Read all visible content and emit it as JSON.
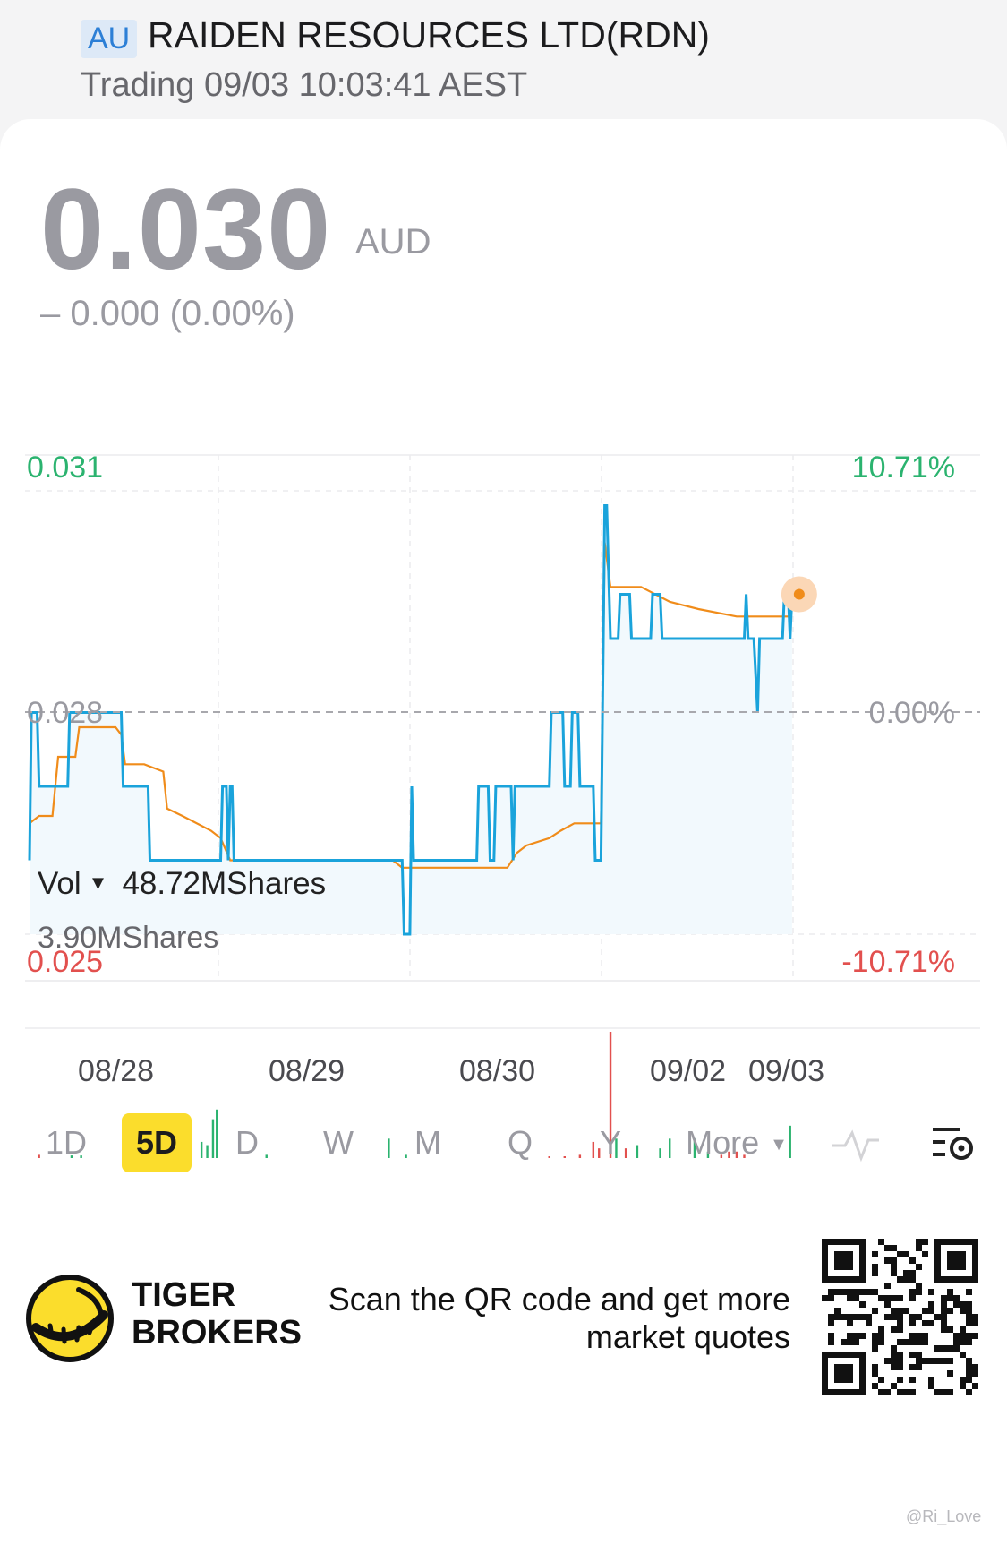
{
  "header": {
    "market_badge": "AU",
    "stock_name": "RAIDEN RESOURCES LTD(RDN)",
    "trading_status": "Trading 09/03 10:03:41 AEST"
  },
  "quote": {
    "price": "0.030",
    "currency": "AUD",
    "change": "– 0.000 (0.00%)"
  },
  "chart_labels": {
    "high_price": "0.031",
    "low_price": "0.025",
    "base_price": "0.028",
    "high_pct": "10.71%",
    "low_pct": "-10.71%",
    "base_pct": "0.00%"
  },
  "volume": {
    "label": "Vol",
    "total": "48.72MShares",
    "max": "3.90MShares"
  },
  "dates": [
    "08/28",
    "08/29",
    "08/30",
    "09/02",
    "09/03"
  ],
  "periods": {
    "p1d": "1D",
    "p5d": "5D",
    "pd": "D",
    "pw": "W",
    "pm": "M",
    "pq": "Q",
    "py": "Y",
    "more": "More",
    "active": "5D"
  },
  "footer": {
    "brand_line1": "TIGER",
    "brand_line2": "BROKERS",
    "promo_line1": "Scan the QR code and get more",
    "promo_line2": "market quotes",
    "watermark": "@Ri_Love"
  },
  "colors": {
    "price_line": "#1aa3db",
    "avg_line": "#f08c1a",
    "up": "#2bb36f",
    "down": "#e2504e",
    "active_period": "#fbdd2c"
  },
  "icons": [
    "intraday-line-icon",
    "chart-settings-icon",
    "tiger-logo-icon",
    "qr-code-icon",
    "dropdown-caret-icon"
  ],
  "chart_data": {
    "type": "line",
    "x_unit": "trading session (0 = open 08/28, 4 = 09/03)",
    "ylim": [
      0.025,
      0.031
    ],
    "base": 0.028,
    "series": [
      {
        "values": [
          [
            0.0,
            0.026
          ],
          [
            0.01,
            0.028
          ],
          [
            0.04,
            0.028
          ],
          [
            0.05,
            0.027
          ],
          [
            0.2,
            0.027
          ],
          [
            0.21,
            0.028
          ],
          [
            0.48,
            0.028
          ],
          [
            0.49,
            0.027
          ],
          [
            0.62,
            0.027
          ],
          [
            0.63,
            0.026
          ],
          [
            1.0,
            0.026
          ],
          [
            1.01,
            0.027
          ],
          [
            1.03,
            0.027
          ],
          [
            1.04,
            0.026
          ],
          [
            1.05,
            0.027
          ],
          [
            1.06,
            0.027
          ],
          [
            1.07,
            0.026
          ],
          [
            1.95,
            0.026
          ],
          [
            1.96,
            0.025
          ],
          [
            1.99,
            0.025
          ],
          [
            2.0,
            0.027
          ],
          [
            2.01,
            0.026
          ],
          [
            2.34,
            0.026
          ],
          [
            2.35,
            0.027
          ],
          [
            2.4,
            0.027
          ],
          [
            2.41,
            0.026
          ],
          [
            2.43,
            0.026
          ],
          [
            2.44,
            0.027
          ],
          [
            2.52,
            0.027
          ],
          [
            2.53,
            0.026
          ],
          [
            2.54,
            0.027
          ],
          [
            2.72,
            0.027
          ],
          [
            2.73,
            0.028
          ],
          [
            2.79,
            0.028
          ],
          [
            2.8,
            0.027
          ],
          [
            2.83,
            0.027
          ],
          [
            2.84,
            0.028
          ],
          [
            2.87,
            0.028
          ],
          [
            2.88,
            0.027
          ],
          [
            2.95,
            0.027
          ],
          [
            2.96,
            0.026
          ],
          [
            2.99,
            0.026
          ],
          [
            3.01,
            0.0308
          ],
          [
            3.02,
            0.0308
          ],
          [
            3.04,
            0.029
          ],
          [
            3.08,
            0.029
          ],
          [
            3.09,
            0.0296
          ],
          [
            3.14,
            0.0296
          ],
          [
            3.15,
            0.029
          ],
          [
            3.25,
            0.029
          ],
          [
            3.26,
            0.0296
          ],
          [
            3.3,
            0.0296
          ],
          [
            3.31,
            0.029
          ],
          [
            3.74,
            0.029
          ],
          [
            3.75,
            0.0296
          ],
          [
            3.76,
            0.029
          ],
          [
            3.79,
            0.029
          ],
          [
            3.81,
            0.028
          ],
          [
            3.82,
            0.029
          ],
          [
            3.94,
            0.029
          ],
          [
            3.95,
            0.0296
          ],
          [
            3.97,
            0.0296
          ],
          [
            3.98,
            0.029
          ],
          [
            3.99,
            0.0296
          ]
        ]
      },
      {
        "values": [
          [
            0.0,
            0.0265
          ],
          [
            0.05,
            0.0266
          ],
          [
            0.12,
            0.0266
          ],
          [
            0.15,
            0.0274
          ],
          [
            0.24,
            0.0274
          ],
          [
            0.26,
            0.0278
          ],
          [
            0.45,
            0.0278
          ],
          [
            0.48,
            0.0277
          ],
          [
            0.5,
            0.0273
          ],
          [
            0.6,
            0.0273
          ],
          [
            0.7,
            0.0272
          ],
          [
            0.72,
            0.0267
          ],
          [
            0.8,
            0.0266
          ],
          [
            0.95,
            0.0264
          ],
          [
            1.0,
            0.0263
          ],
          [
            1.05,
            0.026
          ],
          [
            1.9,
            0.026
          ],
          [
            1.95,
            0.0259
          ],
          [
            2.4,
            0.0259
          ],
          [
            2.5,
            0.0259
          ],
          [
            2.55,
            0.0261
          ],
          [
            2.6,
            0.0262
          ],
          [
            2.72,
            0.0263
          ],
          [
            2.78,
            0.0264
          ],
          [
            2.85,
            0.0265
          ],
          [
            2.99,
            0.0265
          ],
          [
            3.01,
            0.0303
          ],
          [
            3.04,
            0.0297
          ],
          [
            3.2,
            0.0297
          ],
          [
            3.35,
            0.0295
          ],
          [
            3.5,
            0.0294
          ],
          [
            3.7,
            0.0293
          ],
          [
            3.85,
            0.0293
          ],
          [
            3.99,
            0.0293
          ]
        ]
      }
    ],
    "volume_ylim": [
      0,
      3.9
    ],
    "volume_unit": "MShares",
    "volume_bars": [
      {
        "x": 0.05,
        "v": 0.1,
        "dir": "down"
      },
      {
        "x": 0.22,
        "v": 0.08,
        "dir": "up"
      },
      {
        "x": 0.27,
        "v": 0.08,
        "dir": "up"
      },
      {
        "x": 0.7,
        "v": 0.5,
        "dir": "up"
      },
      {
        "x": 0.75,
        "v": 0.3,
        "dir": "up"
      },
      {
        "x": 0.8,
        "v": 0.4,
        "dir": "up"
      },
      {
        "x": 0.84,
        "v": 0.3,
        "dir": "up"
      },
      {
        "x": 0.9,
        "v": 0.5,
        "dir": "up"
      },
      {
        "x": 0.93,
        "v": 0.4,
        "dir": "up"
      },
      {
        "x": 0.96,
        "v": 1.2,
        "dir": "up"
      },
      {
        "x": 0.98,
        "v": 1.5,
        "dir": "up"
      },
      {
        "x": 1.24,
        "v": 0.1,
        "dir": "up"
      },
      {
        "x": 1.88,
        "v": 0.6,
        "dir": "up"
      },
      {
        "x": 1.97,
        "v": 0.1,
        "dir": "up"
      },
      {
        "x": 2.72,
        "v": 0.05,
        "dir": "down"
      },
      {
        "x": 2.8,
        "v": 0.05,
        "dir": "down"
      },
      {
        "x": 2.88,
        "v": 0.1,
        "dir": "down"
      },
      {
        "x": 2.95,
        "v": 0.5,
        "dir": "down"
      },
      {
        "x": 2.98,
        "v": 0.3,
        "dir": "down"
      },
      {
        "x": 3.04,
        "v": 3.9,
        "dir": "down"
      },
      {
        "x": 3.07,
        "v": 0.6,
        "dir": "up"
      },
      {
        "x": 3.12,
        "v": 0.3,
        "dir": "down"
      },
      {
        "x": 3.18,
        "v": 0.4,
        "dir": "up"
      },
      {
        "x": 3.3,
        "v": 0.3,
        "dir": "up"
      },
      {
        "x": 3.35,
        "v": 0.6,
        "dir": "up"
      },
      {
        "x": 3.48,
        "v": 0.6,
        "dir": "up"
      },
      {
        "x": 3.55,
        "v": 0.2,
        "dir": "up"
      },
      {
        "x": 3.62,
        "v": 0.1,
        "dir": "down"
      },
      {
        "x": 3.66,
        "v": 0.2,
        "dir": "down"
      },
      {
        "x": 3.7,
        "v": 0.2,
        "dir": "down"
      },
      {
        "x": 3.74,
        "v": 0.1,
        "dir": "down"
      },
      {
        "x": 3.98,
        "v": 1.0,
        "dir": "up"
      }
    ]
  }
}
